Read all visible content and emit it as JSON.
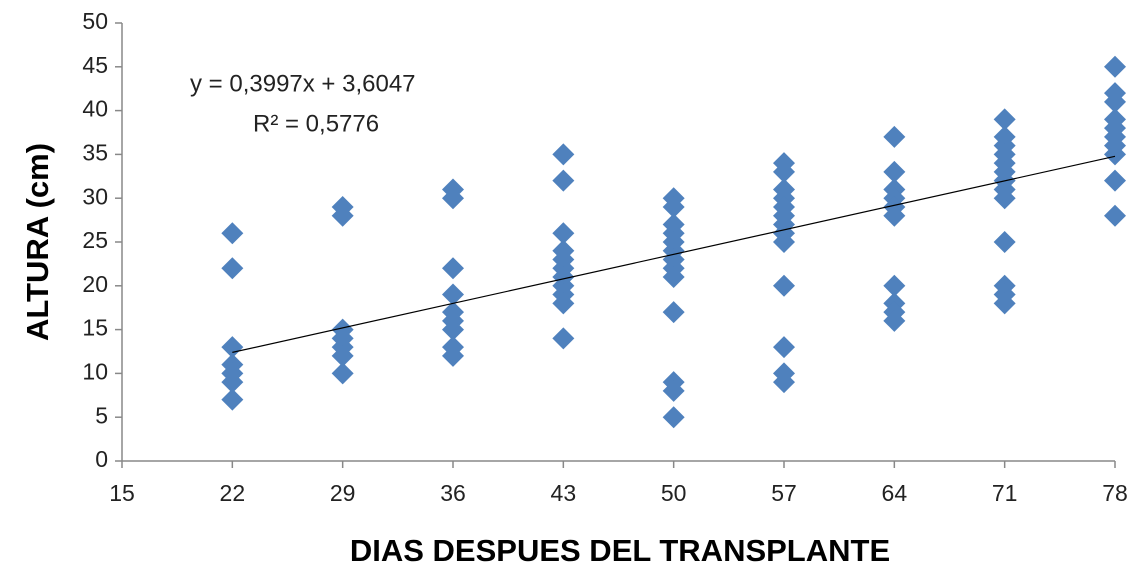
{
  "chart_data": {
    "type": "scatter",
    "x_label": "DIAS DESPUES DEL TRANSPLANTE",
    "y_label": "ALTURA (cm)",
    "annotations": [
      "y = 0,3997x + 3,6047",
      "R² = 0,5776"
    ],
    "color": "#4f81bd",
    "marker": "diamond",
    "trendline": {
      "slope": 0.3997,
      "intercept": 3.6047,
      "x_range": [
        22,
        78
      ],
      "color": "#000000"
    },
    "xlim": [
      15,
      78
    ],
    "xticks": [
      15,
      22,
      29,
      36,
      43,
      50,
      57,
      64,
      71,
      78
    ],
    "ylim": [
      0,
      50
    ],
    "yticks": [
      0,
      5,
      10,
      15,
      20,
      25,
      30,
      35,
      40,
      45,
      50
    ],
    "x": [
      22,
      22,
      22,
      22,
      22,
      22,
      22,
      29,
      29,
      29,
      29,
      29,
      29,
      29,
      36,
      36,
      36,
      36,
      36,
      36,
      36,
      36,
      36,
      43,
      43,
      43,
      43,
      43,
      43,
      43,
      43,
      43,
      43,
      43,
      50,
      50,
      50,
      50,
      50,
      50,
      50,
      50,
      50,
      50,
      50,
      50,
      50,
      57,
      57,
      57,
      57,
      57,
      57,
      57,
      57,
      57,
      57,
      57,
      57,
      57,
      64,
      64,
      64,
      64,
      64,
      64,
      64,
      64,
      64,
      64,
      71,
      71,
      71,
      71,
      71,
      71,
      71,
      71,
      71,
      71,
      71,
      71,
      71,
      78,
      78,
      78,
      78,
      78,
      78,
      78,
      78,
      78,
      78
    ],
    "values": [
      26,
      22,
      13,
      11,
      10,
      9,
      7,
      29,
      28,
      15,
      14,
      13,
      12,
      10,
      31,
      30,
      22,
      19,
      17,
      16,
      15,
      13,
      12,
      35,
      32,
      26,
      24,
      23,
      22,
      21,
      20,
      19,
      18,
      14,
      30,
      29,
      27,
      26,
      25,
      24,
      23,
      22,
      21,
      17,
      9,
      8,
      5,
      34,
      33,
      31,
      30,
      29,
      28,
      27,
      26,
      25,
      20,
      13,
      10,
      9,
      37,
      33,
      31,
      30,
      29,
      28,
      20,
      18,
      17,
      16,
      39,
      37,
      36,
      35,
      34,
      33,
      32,
      31,
      30,
      25,
      20,
      19,
      18,
      45,
      42,
      41,
      39,
      38,
      37,
      36,
      35,
      32,
      28
    ]
  }
}
